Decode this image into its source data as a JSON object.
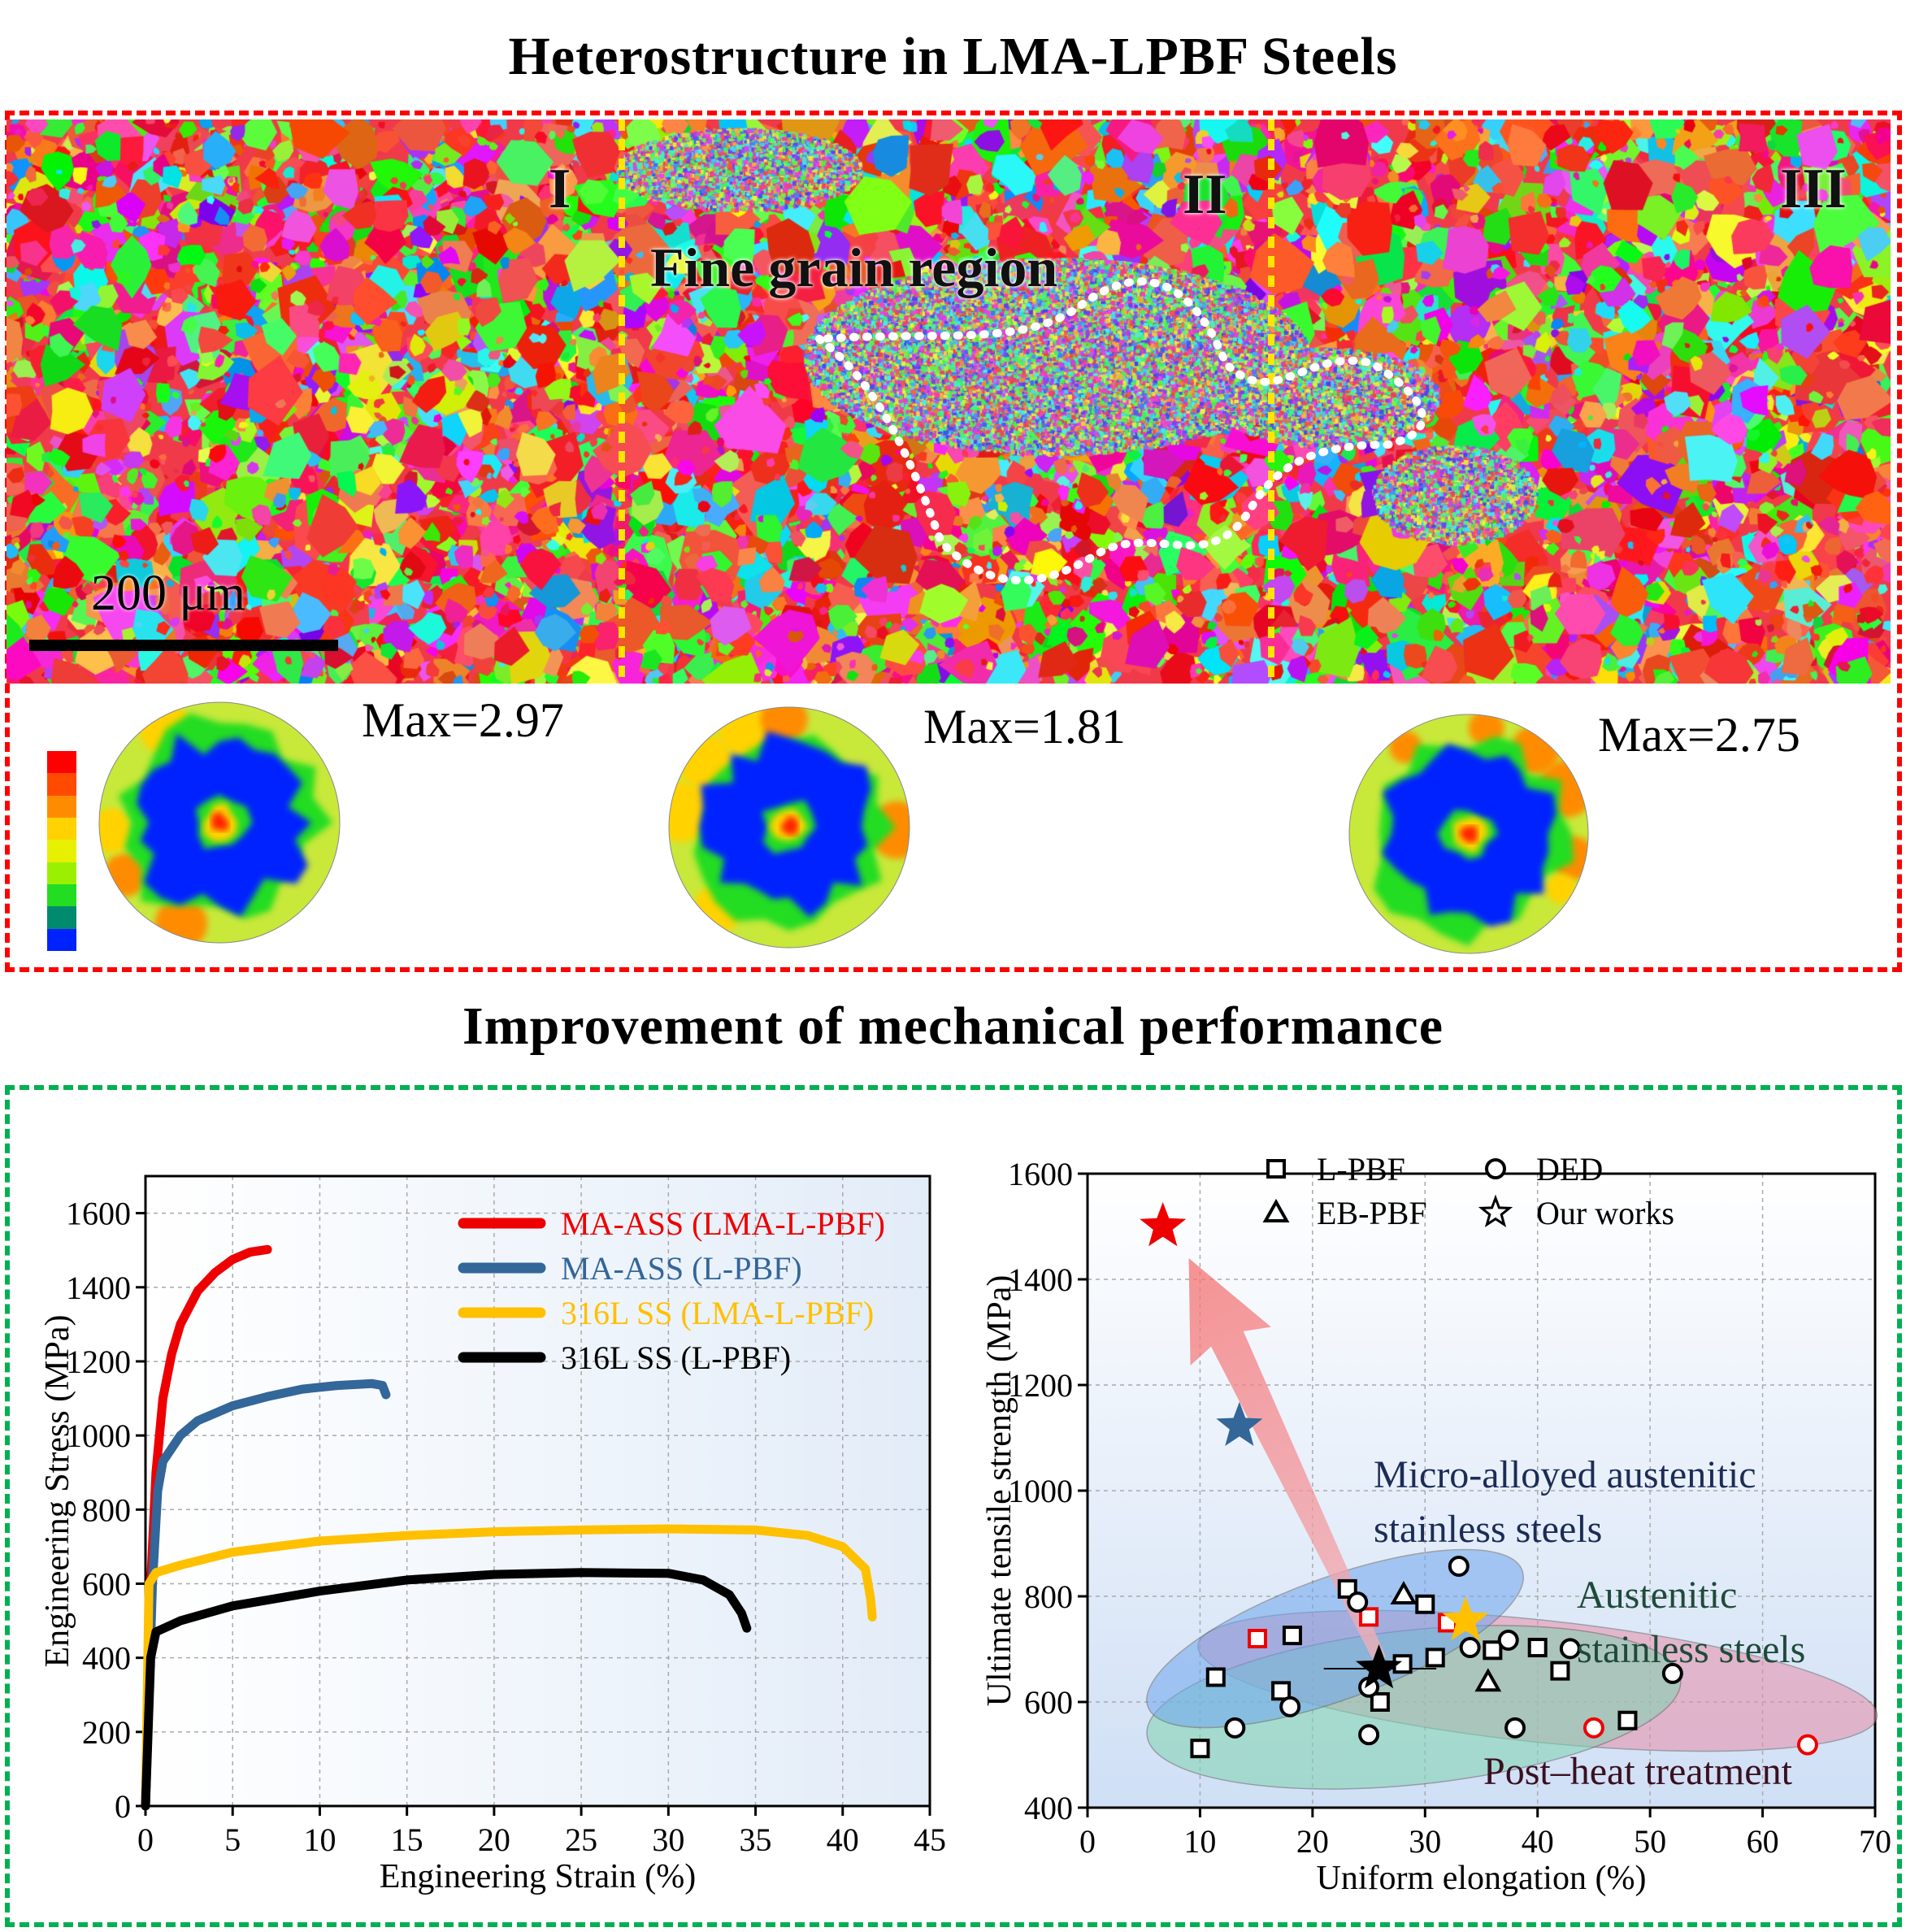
{
  "titles": {
    "top": "Heterostructure in LMA-LPBF Steels",
    "bottom": "Improvement  of mechanical performance"
  },
  "ebsd": {
    "region_labels": [
      "I",
      "II",
      "III"
    ],
    "fine_grain_label": "Fine grain region",
    "scale_bar_label": "200 μm"
  },
  "pole_figures": [
    {
      "max_label": "Max=2.97"
    },
    {
      "max_label": "Max=1.81"
    },
    {
      "max_label": "Max=2.75"
    }
  ],
  "colorbar": [
    "#ff0000",
    "#ff4a00",
    "#ff8c00",
    "#ffd200",
    "#e6f000",
    "#9af000",
    "#22dd22",
    "#008a6e",
    "#0022ff"
  ],
  "colors": {
    "red_box": "#ff0000",
    "green_box": "#00b050",
    "red": "#ee0000",
    "blue": "#336699",
    "yellow": "#ffc000",
    "black": "#000000"
  },
  "chart_data": [
    {
      "type": "line",
      "title": "",
      "xlabel": "Engineering Strain (%)",
      "ylabel": "Engineering Stress (MPa)",
      "xlim": [
        0,
        45
      ],
      "ylim": [
        0,
        1700
      ],
      "xticks": [
        "0",
        "5",
        "10",
        "15",
        "20",
        "25",
        "30",
        "35",
        "40",
        "45"
      ],
      "yticks": [
        "0",
        "200",
        "400",
        "600",
        "800",
        "1000",
        "1200",
        "1400",
        "1600"
      ],
      "grid": true,
      "legend_position": "top-right",
      "series": [
        {
          "name": "MA-ASS (LMA-L-PBF)",
          "color": "#ee0000",
          "points": [
            [
              0,
              0
            ],
            [
              0.3,
              600
            ],
            [
              0.6,
              900
            ],
            [
              1,
              1100
            ],
            [
              1.5,
              1220
            ],
            [
              2,
              1300
            ],
            [
              3,
              1390
            ],
            [
              4,
              1440
            ],
            [
              5,
              1475
            ],
            [
              6,
              1495
            ],
            [
              7,
              1502
            ]
          ]
        },
        {
          "name": "MA-ASS (L-PBF)",
          "color": "#336699",
          "points": [
            [
              0,
              0
            ],
            [
              0.4,
              600
            ],
            [
              0.7,
              850
            ],
            [
              1,
              930
            ],
            [
              2,
              1000
            ],
            [
              3,
              1040
            ],
            [
              5,
              1080
            ],
            [
              7,
              1105
            ],
            [
              9,
              1125
            ],
            [
              11,
              1135
            ],
            [
              13,
              1140
            ],
            [
              13.6,
              1135
            ],
            [
              13.8,
              1110
            ]
          ]
        },
        {
          "name": "316L SS (LMA-L-PBF)",
          "color": "#ffc000",
          "points": [
            [
              0,
              0
            ],
            [
              0.2,
              600
            ],
            [
              0.6,
              630
            ],
            [
              2,
              650
            ],
            [
              5,
              685
            ],
            [
              10,
              715
            ],
            [
              15,
              730
            ],
            [
              20,
              740
            ],
            [
              25,
              745
            ],
            [
              30,
              748
            ],
            [
              35,
              745
            ],
            [
              38,
              730
            ],
            [
              40,
              700
            ],
            [
              41.3,
              640
            ],
            [
              41.6,
              560
            ],
            [
              41.7,
              510
            ]
          ]
        },
        {
          "name": "316L SS (L-PBF)",
          "color": "#000000",
          "points": [
            [
              0,
              0
            ],
            [
              0.3,
              400
            ],
            [
              0.6,
              470
            ],
            [
              2,
              500
            ],
            [
              5,
              540
            ],
            [
              10,
              580
            ],
            [
              15,
              610
            ],
            [
              20,
              625
            ],
            [
              25,
              630
            ],
            [
              30,
              628
            ],
            [
              32,
              610
            ],
            [
              33.5,
              570
            ],
            [
              34.2,
              520
            ],
            [
              34.5,
              480
            ]
          ]
        }
      ]
    },
    {
      "type": "scatter",
      "title": "",
      "xlabel": "Uniform elongation (%)",
      "ylabel": "Ultimate tensile strength (MPa)",
      "xlim": [
        0,
        70
      ],
      "ylim": [
        400,
        1600
      ],
      "xticks": [
        "0",
        "10",
        "20",
        "30",
        "40",
        "50",
        "60",
        "70"
      ],
      "yticks": [
        "400",
        "600",
        "800",
        "1000",
        "1200",
        "1400",
        "1600"
      ],
      "grid": true,
      "legend_position": "top-right",
      "legend": [
        {
          "marker": "square",
          "label": "L-PBF"
        },
        {
          "marker": "circle",
          "label": "DED"
        },
        {
          "marker": "triangle",
          "label": "EB-PBF"
        },
        {
          "marker": "star",
          "label": "Our works"
        }
      ],
      "region_labels": {
        "micro_alloyed": [
          "Micro-alloyed austenitic",
          "stainless steels"
        ],
        "austenitic": [
          "Austenitic",
          "stainless steels"
        ],
        "post_heat": "Post–heat treatment"
      },
      "series": [
        {
          "name": "L-PBF",
          "marker": "square",
          "color": "#000000",
          "points": [
            [
              11.4,
              647
            ],
            [
              18.2,
              726
            ],
            [
              10,
              512
            ],
            [
              17.2,
              621
            ],
            [
              23.1,
              814
            ],
            [
              26,
              600
            ],
            [
              28,
              672
            ],
            [
              30,
              785
            ],
            [
              30.9,
              684
            ],
            [
              36,
              698
            ],
            [
              40,
              703
            ],
            [
              42,
              659
            ],
            [
              48,
              565
            ]
          ]
        },
        {
          "name": "L-PBF (post-heat treatment)",
          "marker": "square",
          "color": "#ee0000",
          "points": [
            [
              15.1,
              720
            ],
            [
              25,
              761
            ],
            [
              32,
              750
            ]
          ]
        },
        {
          "name": "DED",
          "marker": "circle",
          "color": "#000000",
          "points": [
            [
              13.1,
              551
            ],
            [
              18,
              591
            ],
            [
              25,
              628
            ],
            [
              25,
              538
            ],
            [
              24,
              789
            ],
            [
              33,
              857
            ],
            [
              34,
              703
            ],
            [
              37.4,
              717
            ],
            [
              38,
              551
            ],
            [
              42.9,
              701
            ],
            [
              52,
              654
            ]
          ]
        },
        {
          "name": "DED (post-heat treatment)",
          "marker": "circle",
          "color": "#ee0000",
          "points": [
            [
              45,
              551
            ],
            [
              64,
              519
            ]
          ]
        },
        {
          "name": "EB-PBF",
          "marker": "triangle",
          "color": "#000000",
          "points": [
            [
              28.1,
              803
            ],
            [
              35.6,
              638
            ]
          ]
        },
        {
          "name": "Our works",
          "marker": "star",
          "points": [
            [
              6.7,
              1500,
              "#ee0000"
            ],
            [
              13.5,
              1122,
              "#336699"
            ],
            [
              33.6,
              754,
              "#ffc000"
            ],
            [
              25.9,
              663,
              "#000000"
            ]
          ]
        }
      ]
    }
  ]
}
